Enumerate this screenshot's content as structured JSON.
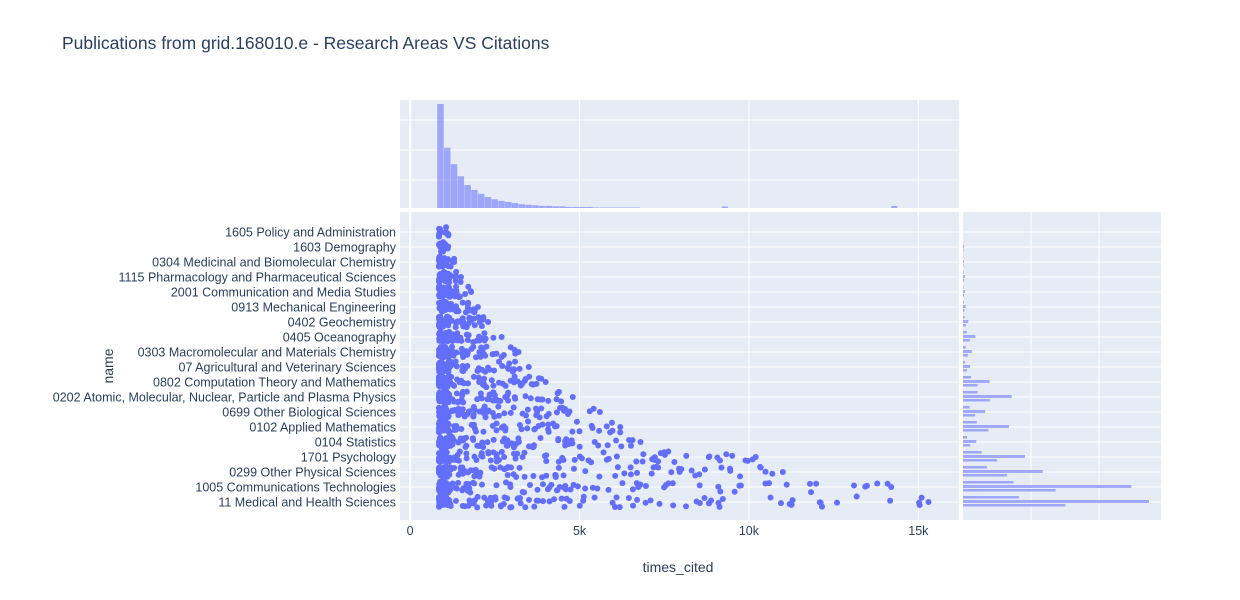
{
  "chart_data": {
    "type": "scatter",
    "title": "Publications from grid.168010.e - Research Areas VS Citations",
    "xlabel": "times_cited",
    "ylabel": "name",
    "xlim": [
      -300,
      16200
    ],
    "x_ticks": [
      0,
      5000,
      10000,
      15000
    ],
    "x_tick_labels": [
      "0",
      "5k",
      "10k",
      "15k"
    ],
    "categories": [
      "1605 Policy and Administration",
      "1603 Demography",
      "0304 Medicinal and Biomolecular Chemistry",
      "1115 Pharmacology and Pharmaceutical Sciences",
      "2001 Communication and Media Studies",
      "0913 Mechanical Engineering",
      "0402 Geochemistry",
      "0405 Oceanography",
      "0303 Macromolecular and Materials Chemistry",
      "07 Agricultural and Veterinary Sciences",
      "0802 Computation Theory and Mathematics",
      "0202 Atomic, Molecular, Nuclear, Particle and Plasma Physics",
      "0699 Other Biological Sciences",
      "0102 Applied Mathematics",
      "0104 Statistics",
      "1701 Psychology",
      "0299 Other Physical Sciences",
      "1005 Communications Technologies",
      "11 Medical and Health Sciences"
    ],
    "max_times_cited_by_category": [
      900,
      1000,
      1300,
      1500,
      1800,
      2000,
      2300,
      2700,
      3200,
      3500,
      4000,
      4800,
      5600,
      6200,
      6800,
      10200,
      11000,
      14200,
      15300
    ],
    "series": [
      {
        "color": "#636efa"
      }
    ],
    "marginal_x": {
      "type": "histogram",
      "bin_width": 200,
      "bin_start": 800,
      "counts": [
        190,
        110,
        80,
        58,
        42,
        33,
        26,
        20,
        16,
        13,
        11,
        9,
        7,
        6,
        5,
        4,
        4,
        3,
        3,
        2,
        2,
        2,
        2,
        1,
        1,
        1,
        1,
        1,
        1,
        1
      ]
    },
    "marginal_y": {
      "type": "histogram",
      "counts": [
        0,
        1,
        1,
        2,
        2,
        3,
        6,
        14,
        10,
        8,
        30,
        55,
        25,
        52,
        15,
        70,
        90,
        190,
        210
      ]
    },
    "grid": true,
    "background": "#e5ecf6"
  }
}
